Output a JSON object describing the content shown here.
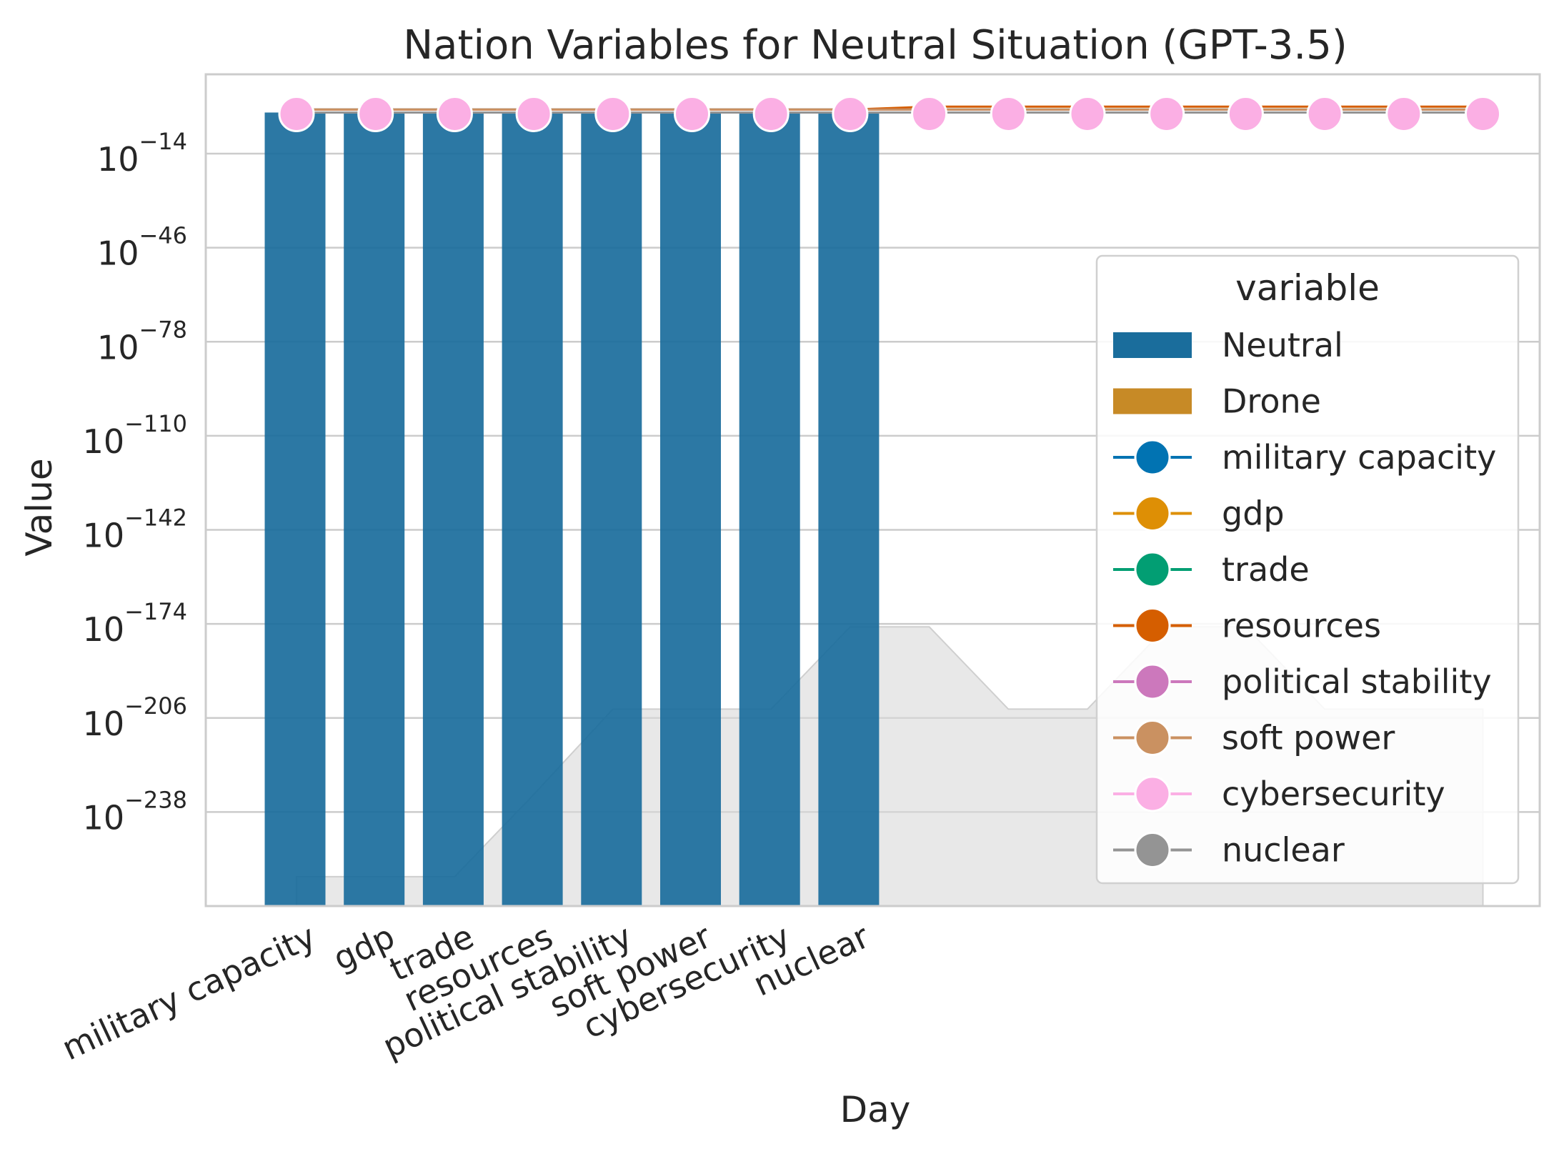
{
  "chart_data": {
    "type": "bar",
    "title": "Nation Variables for Neutral Situation (GPT-3.5)",
    "xlabel": "Day",
    "ylabel": "Value",
    "y_scale": "log",
    "ylim_exponents": [
      -270,
      13
    ],
    "y_ticks": [
      {
        "base": "10",
        "exp": "−14",
        "value_exp": -14
      },
      {
        "base": "10",
        "exp": "−46",
        "value_exp": -46
      },
      {
        "base": "10",
        "exp": "−78",
        "value_exp": -78
      },
      {
        "base": "10",
        "exp": "−110",
        "value_exp": -110
      },
      {
        "base": "10",
        "exp": "−142",
        "value_exp": -142
      },
      {
        "base": "10",
        "exp": "−174",
        "value_exp": -174
      },
      {
        "base": "10",
        "exp": "−206",
        "value_exp": -206
      },
      {
        "base": "10",
        "exp": "−238",
        "value_exp": -238
      }
    ],
    "categories": [
      "military capacity",
      "gdp",
      "trade",
      "resources",
      "political stability",
      "soft power",
      "cybersecurity",
      "nuclear"
    ],
    "x_positions": 16,
    "bars": [
      {
        "name": "Neutral",
        "color": "#1a6d9c",
        "value_exp": 0,
        "count": 8
      },
      {
        "name": "Drone",
        "color": "#c78a26",
        "value_exp": null,
        "count": 0
      }
    ],
    "background_area": {
      "color": "#d9d9d9",
      "value_exp": [
        -260,
        -260,
        -260,
        -232,
        -203,
        -203,
        -203,
        -175,
        -175,
        -203,
        -203,
        -175,
        -175,
        -203,
        -203,
        -203
      ]
    },
    "series": [
      {
        "name": "military capacity",
        "color": "#0173b2",
        "value_exp": [
          1,
          1,
          1,
          1,
          1,
          1,
          1,
          1,
          1,
          1,
          1,
          1,
          1,
          1,
          1,
          1
        ]
      },
      {
        "name": "gdp",
        "color": "#de8f05",
        "value_exp": [
          1,
          1,
          1,
          1,
          1,
          1,
          1,
          1,
          1,
          1,
          1,
          1,
          1,
          1,
          1,
          1
        ]
      },
      {
        "name": "trade",
        "color": "#029e73",
        "value_exp": [
          1,
          1,
          1,
          1,
          1,
          1,
          1,
          1,
          1,
          1,
          1,
          1,
          1,
          1,
          1,
          1
        ]
      },
      {
        "name": "resources",
        "color": "#d55e00",
        "value_exp": [
          1,
          1,
          1,
          1,
          1,
          1,
          1,
          1,
          2,
          2,
          2,
          2,
          2,
          2,
          2,
          2
        ]
      },
      {
        "name": "political stability",
        "color": "#cc78bc",
        "value_exp": [
          1,
          1,
          1,
          1,
          1,
          1,
          1,
          1,
          1,
          1,
          1,
          1,
          1,
          1,
          1,
          1
        ]
      },
      {
        "name": "soft power",
        "color": "#ca9161",
        "value_exp": [
          1,
          1,
          1,
          1,
          1,
          1,
          1,
          1,
          1,
          1,
          1,
          1,
          1,
          1,
          1,
          1
        ]
      },
      {
        "name": "cybersecurity",
        "color": "#fbafe4",
        "value_exp": [
          0,
          0,
          0,
          0,
          0,
          0,
          0,
          0,
          0,
          0,
          0,
          0,
          0,
          0,
          0,
          0
        ]
      },
      {
        "name": "nuclear",
        "color": "#949494",
        "value_exp": [
          0,
          0,
          0,
          0,
          0,
          0,
          0,
          0,
          0,
          0,
          0,
          0,
          0,
          0,
          0,
          0
        ]
      }
    ],
    "legend": {
      "title": "variable",
      "placement": "right",
      "entries": [
        {
          "label": "Neutral",
          "kind": "bar",
          "color": "#1a6d9c"
        },
        {
          "label": "Drone",
          "kind": "bar",
          "color": "#c78a26"
        },
        {
          "label": "military capacity",
          "kind": "line",
          "color": "#0173b2"
        },
        {
          "label": "gdp",
          "kind": "line",
          "color": "#de8f05"
        },
        {
          "label": "trade",
          "kind": "line",
          "color": "#029e73"
        },
        {
          "label": "resources",
          "kind": "line",
          "color": "#d55e00"
        },
        {
          "label": "political stability",
          "kind": "line",
          "color": "#cc78bc"
        },
        {
          "label": "soft power",
          "kind": "line",
          "color": "#ca9161"
        },
        {
          "label": "cybersecurity",
          "kind": "line",
          "color": "#fbafe4"
        },
        {
          "label": "nuclear",
          "kind": "line",
          "color": "#949494"
        }
      ]
    },
    "grid": true
  }
}
